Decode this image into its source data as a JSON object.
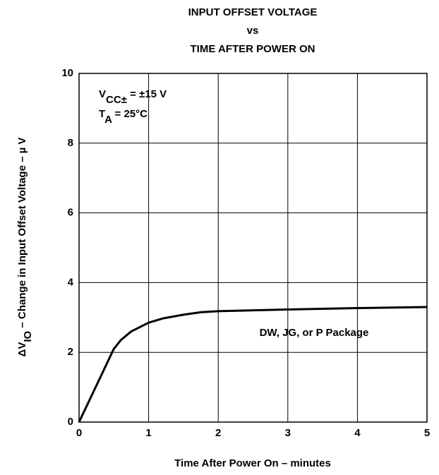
{
  "chart_data": {
    "type": "line",
    "title_lines": [
      "INPUT OFFSET VOLTAGE",
      "vs",
      "TIME AFTER POWER ON"
    ],
    "x_label": "Time After Power On – minutes",
    "y_label_parts": [
      "ΔV",
      "IO",
      " – Change in Input Offset Voltage – µ V"
    ],
    "conditions": [
      [
        "V",
        "CC±",
        " = ±15 V"
      ],
      [
        "T",
        "A",
        " = 25°C"
      ]
    ],
    "series_label": "DW, JG, or P Package",
    "x": [
      0,
      0.5,
      0.6,
      0.75,
      1,
      1.2,
      1.5,
      1.75,
      2,
      3,
      4,
      5
    ],
    "series": [
      {
        "color": "#000000",
        "values": [
          0,
          2.1,
          2.35,
          2.6,
          2.85,
          2.97,
          3.08,
          3.15,
          3.18,
          3.23,
          3.27,
          3.3
        ]
      }
    ],
    "xlim": [
      0,
      5
    ],
    "xticks": [
      0,
      1,
      2,
      3,
      4,
      5
    ],
    "ylim": [
      0,
      10
    ],
    "yticks": [
      0,
      2,
      4,
      6,
      8,
      10
    ],
    "grid": true
  }
}
